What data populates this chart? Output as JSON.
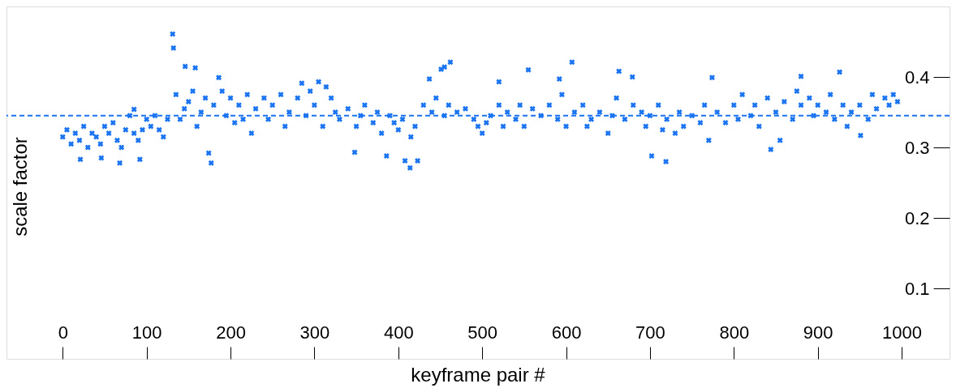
{
  "chart_data": {
    "type": "scatter",
    "xlabel": "keyframe pair #",
    "ylabel": "scale factor",
    "xlim": [
      -67,
      1057
    ],
    "ylim": [
      0,
      0.5
    ],
    "xticks": [
      0,
      100,
      200,
      300,
      400,
      500,
      600,
      700,
      800,
      900,
      1000
    ],
    "yticks": [
      0.1,
      0.2,
      0.3,
      0.4
    ],
    "grid": false,
    "marker": "cross",
    "ref_lines": [
      {
        "axis": "y",
        "value": 0.345,
        "line_style": "dashed",
        "color": "#1a73f0"
      }
    ],
    "series": [
      {
        "color": "#1a73f0",
        "x": [
          0,
          5,
          10,
          15,
          20,
          25,
          30,
          35,
          40,
          45,
          50,
          55,
          60,
          65,
          70,
          75,
          80,
          85,
          90,
          95,
          100,
          105,
          110,
          115,
          120,
          125,
          135,
          140,
          145,
          150,
          155,
          160,
          165,
          170,
          180,
          190,
          195,
          200,
          205,
          210,
          215,
          220,
          225,
          230,
          240,
          245,
          250,
          260,
          265,
          270,
          280,
          290,
          295,
          300,
          310,
          320,
          325,
          330,
          340,
          350,
          355,
          360,
          370,
          375,
          380,
          390,
          395,
          400,
          405,
          415,
          420,
          430,
          440,
          445,
          455,
          460,
          470,
          480,
          490,
          495,
          500,
          505,
          510,
          520,
          525,
          530,
          540,
          545,
          550,
          560,
          570,
          580,
          590,
          595,
          600,
          610,
          620,
          625,
          630,
          640,
          650,
          655,
          660,
          670,
          680,
          690,
          695,
          700,
          710,
          715,
          720,
          730,
          735,
          740,
          750,
          760,
          765,
          770,
          780,
          790,
          800,
          805,
          810,
          820,
          825,
          830,
          840,
          850,
          855,
          860,
          870,
          875,
          880,
          890,
          895,
          900,
          910,
          915,
          920,
          930,
          935,
          940,
          950,
          960,
          965,
          970,
          980,
          985,
          990,
          995,
          131,
          132,
          146,
          158,
          177,
          68,
          414,
          408,
          423,
          348,
          386,
          462,
          455,
          451,
          437,
          555,
          607,
          663,
          679,
          592,
          520,
          926,
          774,
          702,
          719,
          880,
          951,
          844,
          21,
          46,
          92,
          174,
          186,
          305,
          314,
          285,
          85
        ],
        "values": [
          0.315,
          0.325,
          0.305,
          0.32,
          0.31,
          0.33,
          0.3,
          0.32,
          0.315,
          0.305,
          0.33,
          0.32,
          0.335,
          0.31,
          0.3,
          0.325,
          0.345,
          0.32,
          0.31,
          0.325,
          0.34,
          0.33,
          0.345,
          0.325,
          0.315,
          0.34,
          0.375,
          0.34,
          0.355,
          0.365,
          0.38,
          0.33,
          0.35,
          0.37,
          0.36,
          0.38,
          0.345,
          0.37,
          0.335,
          0.36,
          0.34,
          0.375,
          0.32,
          0.355,
          0.37,
          0.34,
          0.36,
          0.375,
          0.33,
          0.35,
          0.37,
          0.345,
          0.38,
          0.36,
          0.33,
          0.37,
          0.35,
          0.34,
          0.355,
          0.33,
          0.345,
          0.36,
          0.335,
          0.35,
          0.32,
          0.345,
          0.335,
          0.325,
          0.34,
          0.315,
          0.33,
          0.36,
          0.35,
          0.37,
          0.345,
          0.36,
          0.35,
          0.355,
          0.34,
          0.33,
          0.32,
          0.335,
          0.345,
          0.36,
          0.33,
          0.35,
          0.34,
          0.36,
          0.33,
          0.355,
          0.345,
          0.36,
          0.34,
          0.375,
          0.33,
          0.35,
          0.36,
          0.33,
          0.34,
          0.35,
          0.32,
          0.345,
          0.37,
          0.34,
          0.36,
          0.35,
          0.33,
          0.345,
          0.36,
          0.325,
          0.34,
          0.32,
          0.35,
          0.33,
          0.345,
          0.335,
          0.36,
          0.31,
          0.35,
          0.335,
          0.36,
          0.34,
          0.375,
          0.345,
          0.36,
          0.33,
          0.37,
          0.35,
          0.31,
          0.365,
          0.34,
          0.38,
          0.36,
          0.37,
          0.345,
          0.36,
          0.35,
          0.375,
          0.34,
          0.36,
          0.33,
          0.35,
          0.36,
          0.34,
          0.375,
          0.355,
          0.37,
          0.36,
          0.375,
          0.365,
          0.461,
          0.441,
          0.415,
          0.413,
          0.278,
          0.278,
          0.271,
          0.281,
          0.281,
          0.293,
          0.288,
          0.421,
          0.414,
          0.411,
          0.397,
          0.41,
          0.421,
          0.408,
          0.4,
          0.397,
          0.393,
          0.407,
          0.399,
          0.288,
          0.28,
          0.401,
          0.317,
          0.297,
          0.283,
          0.285,
          0.283,
          0.292,
          0.399,
          0.393,
          0.386,
          0.391,
          0.354
        ]
      }
    ]
  }
}
